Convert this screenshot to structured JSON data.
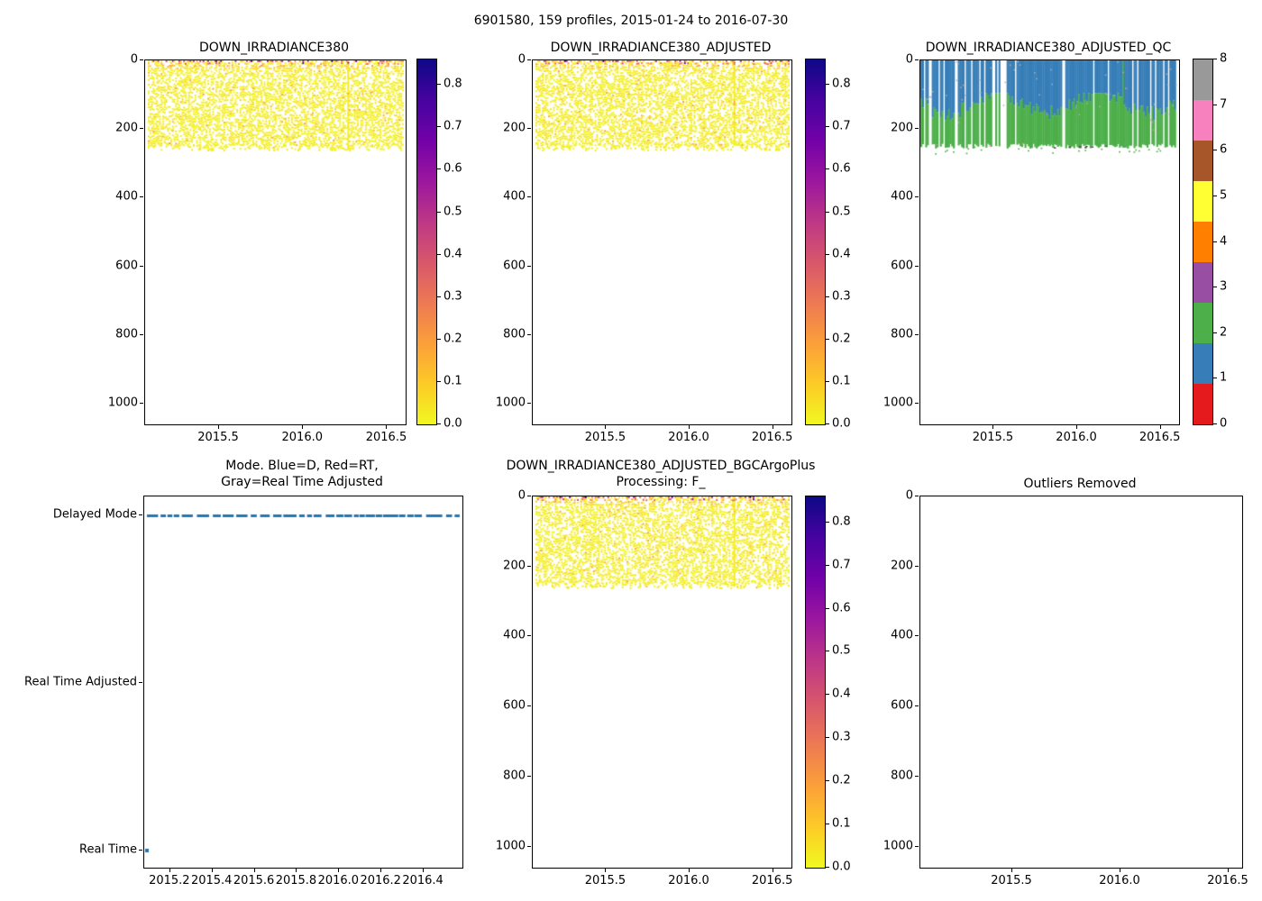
{
  "figure": {
    "suptitle": "6901580, 159 profiles, 2015-01-24 to 2016-07-30",
    "background": "#ffffff"
  },
  "palette": {
    "plasma_reversed_top_to_bottom": [
      "#0d0887",
      "#46039f",
      "#7201a8",
      "#9c179e",
      "#bd3786",
      "#d8576b",
      "#ed7953",
      "#fb9f3a",
      "#fdca26",
      "#f0f921"
    ],
    "qc_set1_flag0_to_flag8": [
      "#e41a1c",
      "#377eb8",
      "#4daf4a",
      "#984ea3",
      "#ff7f00",
      "#ffff33",
      "#a65628",
      "#f781bf",
      "#999999"
    ],
    "mode_marker_blue": "#1f77b4",
    "speck_gray": "#b0b0b0",
    "speck_pink": "#f781bf",
    "speck_dark": "#444444",
    "axis_color": "#000000"
  },
  "chart_data": [
    {
      "id": "down_irradiance380",
      "type": "scatter",
      "title": "DOWN_IRRADIANCE380",
      "x_range": [
        2015.06,
        2016.61
      ],
      "xtick_labels": [
        "2015.5",
        "2016.0",
        "2016.5"
      ],
      "ylim": [
        1060,
        0
      ],
      "ytick_labels": [
        "0",
        "200",
        "400",
        "600",
        "800",
        "1000"
      ],
      "n_profiles": 159,
      "profile_depth_extent": [
        0,
        255
      ],
      "value_range": [
        0,
        0.86
      ],
      "values_description": "mostly 0-0.1 (yellow) over 0-250 depth; 0.2-0.9 (orange to dark red/purple) in top ~20",
      "colormap": "plasma reversed: 0=yellow, 0.86=dark blue",
      "colorbar_tick_labels": [
        "0.0",
        "0.1",
        "0.2",
        "0.3",
        "0.4",
        "0.5",
        "0.6",
        "0.7",
        "0.8"
      ]
    },
    {
      "id": "down_irradiance380_adjusted",
      "type": "scatter",
      "title": "DOWN_IRRADIANCE380_ADJUSTED",
      "x_range": [
        2015.06,
        2016.61
      ],
      "xtick_labels": [
        "2015.5",
        "2016.0",
        "2016.5"
      ],
      "ylim": [
        1060,
        0
      ],
      "ytick_labels": [
        "0",
        "200",
        "400",
        "600",
        "800",
        "1000"
      ],
      "n_profiles": 159,
      "profile_depth_extent": [
        0,
        255
      ],
      "value_range": [
        0,
        0.86
      ],
      "values_description": "same pattern as DOWN_IRRADIANCE380",
      "colormap": "plasma reversed: 0=yellow, 0.86=dark blue",
      "colorbar_tick_labels": [
        "0.0",
        "0.1",
        "0.2",
        "0.3",
        "0.4",
        "0.5",
        "0.6",
        "0.7",
        "0.8"
      ]
    },
    {
      "id": "down_irradiance380_adjusted_qc",
      "type": "qc_flag_columns",
      "title": "DOWN_IRRADIANCE380_ADJUSTED_QC",
      "x_range": [
        2015.06,
        2016.61
      ],
      "xtick_labels": [
        "2015.5",
        "2016.0",
        "2016.5"
      ],
      "ylim": [
        1060,
        0
      ],
      "ytick_labels": [
        "0",
        "200",
        "400",
        "600",
        "800",
        "1000"
      ],
      "n_profiles": 159,
      "flags_present": [
        1,
        2
      ],
      "pattern": {
        "qc1_blue_depth": "0 to ~100-165",
        "qc2_green_depth": "~100-165 to ~250",
        "full_green_column_at_x": 2016.28,
        "missing_profiles": "white vertical gaps, frequent in first and last thirds",
        "specks": "sparse gray/pink dots in field, dark dashes near 250 around 2016.0"
      },
      "colorbar_tick_labels": [
        "0",
        "1",
        "2",
        "3",
        "4",
        "5",
        "6",
        "7",
        "8"
      ]
    },
    {
      "id": "mode",
      "type": "category_scatter",
      "title": "Mode. Blue=D, Red=RT,\nGray=Real Time Adjusted",
      "x_range": [
        2015.077,
        2016.583
      ],
      "xtick_labels": [
        "2015.2",
        "2015.4",
        "2015.6",
        "2015.8",
        "2016.0",
        "2016.2",
        "2016.4"
      ],
      "categories": [
        "Delayed Mode",
        "Real Time Adjusted",
        "Real Time"
      ],
      "delayed_mode_line": {
        "x_start": 2015.08,
        "x_end": 2016.58,
        "style": "dashed row of small blue square markers"
      },
      "real_time_points": [
        2015.08
      ],
      "real_time_adjusted_points": []
    },
    {
      "id": "down_irradiance380_adjusted_bgcargoplus",
      "type": "scatter",
      "title": "DOWN_IRRADIANCE380_ADJUSTED_BGCArgoPlus\nProcessing: F_",
      "x_range": [
        2015.06,
        2016.61
      ],
      "xtick_labels": [
        "2015.5",
        "2016.0",
        "2016.5"
      ],
      "ylim": [
        1060,
        0
      ],
      "ytick_labels": [
        "0",
        "200",
        "400",
        "600",
        "800",
        "1000"
      ],
      "n_profiles": 159,
      "profile_depth_extent": [
        0,
        255
      ],
      "value_range": [
        0,
        0.86
      ],
      "values_description": "same pattern as DOWN_IRRADIANCE380",
      "colormap": "plasma reversed: 0=yellow, 0.86=dark blue",
      "colorbar_tick_labels": [
        "0.0",
        "0.1",
        "0.2",
        "0.3",
        "0.4",
        "0.5",
        "0.6",
        "0.7",
        "0.8"
      ]
    },
    {
      "id": "outliers_removed",
      "type": "empty",
      "title": "Outliers Removed",
      "x_range": [
        2015.075,
        2016.5625
      ],
      "xtick_labels": [
        "2015.5",
        "2016.0",
        "2016.5"
      ],
      "ylim": [
        1060,
        0
      ],
      "ytick_labels": [
        "0",
        "200",
        "400",
        "600",
        "800",
        "1000"
      ]
    }
  ]
}
